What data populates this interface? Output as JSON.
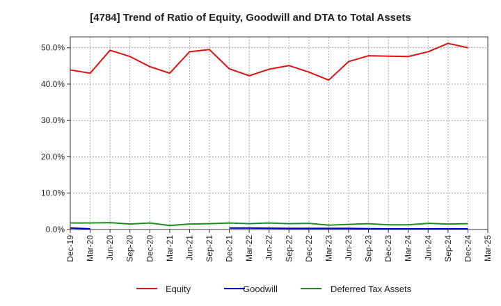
{
  "chart_data": {
    "type": "line",
    "title": "[4784]  Trend of Ratio of Equity, Goodwill and DTA to Total Assets",
    "xlabel": "",
    "ylabel": "",
    "x_tick_labels": [
      "Dec-19",
      "Mar-20",
      "Jun-20",
      "Sep-20",
      "Dec-20",
      "Mar-21",
      "Jun-21",
      "Sep-21",
      "Dec-21",
      "Mar-22",
      "Jun-22",
      "Sep-22",
      "Dec-22",
      "Mar-23",
      "Jun-23",
      "Sep-23",
      "Dec-23",
      "Mar-24",
      "Jun-24",
      "Sep-24",
      "Dec-24",
      "Mar-25"
    ],
    "y_tick_labels": [
      "0.0%",
      "10.0%",
      "20.0%",
      "30.0%",
      "40.0%",
      "50.0%"
    ],
    "y_ticks": [
      0,
      10,
      20,
      30,
      40,
      50
    ],
    "ylim": [
      0,
      53
    ],
    "grid": true,
    "legend_position": "bottom",
    "series": [
      {
        "name": "Equity",
        "color": "#dd1111",
        "values": [
          43.9,
          43.0,
          49.3,
          47.6,
          44.8,
          43.0,
          48.9,
          49.5,
          44.2,
          42.3,
          44.1,
          45.1,
          43.3,
          41.1,
          46.2,
          47.8,
          47.7,
          47.6,
          48.9,
          51.2,
          50.0,
          null
        ]
      },
      {
        "name": "Goodwill",
        "color": "#0000cc",
        "values": [
          0.4,
          0.2,
          null,
          null,
          null,
          null,
          null,
          null,
          0.4,
          0.4,
          0.35,
          0.3,
          0.3,
          0.3,
          0.3,
          0.25,
          0.2,
          0.2,
          0.2,
          0.2,
          0.2,
          null
        ]
      },
      {
        "name": "Deferred Tax Assets",
        "color": "#228b22",
        "values": [
          1.8,
          1.8,
          1.9,
          1.5,
          1.8,
          1.1,
          1.5,
          1.6,
          1.8,
          1.6,
          1.8,
          1.6,
          1.7,
          1.2,
          1.4,
          1.6,
          1.3,
          1.3,
          1.7,
          1.5,
          1.6,
          null
        ]
      }
    ]
  }
}
